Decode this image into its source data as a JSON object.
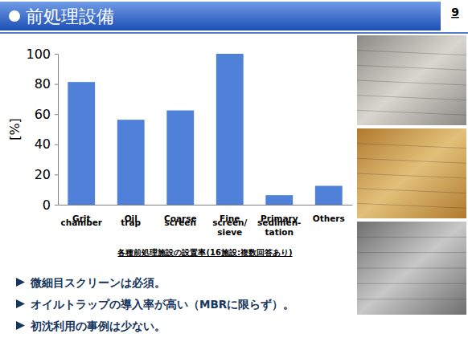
{
  "chart_data": {
    "type": "bar",
    "categories": [
      "Grit\nchamber",
      "Oil\ntrap",
      "Coarse\nscreen",
      "Fine\nscreen/\nsieve",
      "Primary\nsedimen-\ntation",
      "Others"
    ],
    "values": [
      81.3,
      56.3,
      62.5,
      100,
      6.3,
      12.5
    ],
    "color": "#4f81d9",
    "ylabel": "[%]",
    "xlabel": "各種前処理施設の設置率(16施設:複数回答あり)",
    "ylim": [
      0,
      100
    ],
    "yticks": [
      0,
      20,
      40,
      60,
      80,
      100
    ],
    "grid": false
  },
  "slide": {
    "title": "前処理設備",
    "page": "9",
    "bullets": [
      "微細目スクリーンは必須。",
      "オイルトラップの導入率が高い（MBRに限らず）。",
      "初沈利用の事例は少ない。"
    ]
  }
}
